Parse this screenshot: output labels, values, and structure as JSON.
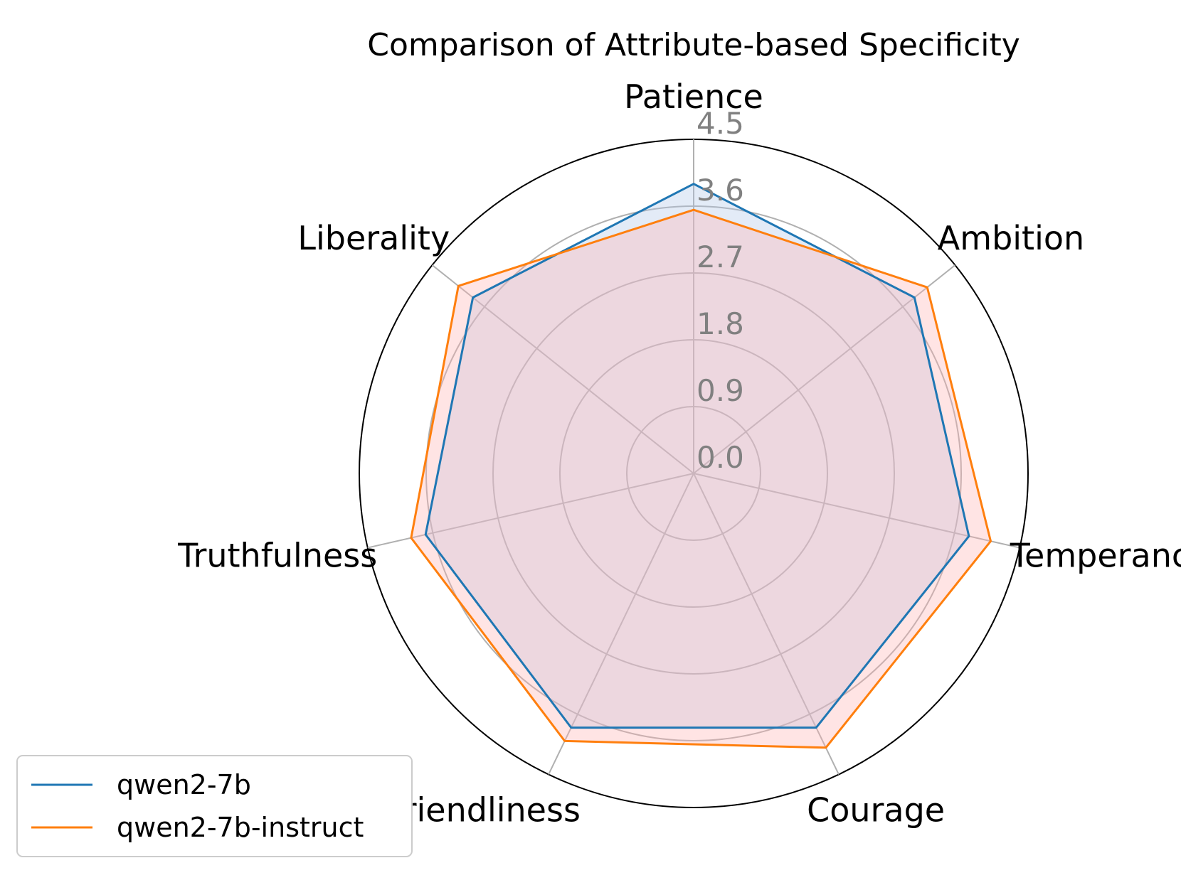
{
  "chart_data": {
    "type": "radar",
    "title": "Comparison of Attribute-based Specificity",
    "categories": [
      "Patience",
      "Ambition",
      "Temperance",
      "Courage",
      "Friendliness",
      "Truthfulness",
      "Liberality"
    ],
    "rlim": [
      0,
      4.5
    ],
    "radial_ticks": [
      "0.0",
      "0.9",
      "1.8",
      "2.7",
      "3.6",
      "4.5"
    ],
    "radial_tick_values": [
      0,
      0.9,
      1.8,
      2.7,
      3.6,
      4.5
    ],
    "grid": true,
    "legend_position": "bottom-left",
    "series": [
      {
        "name": "qwen2-7b",
        "values": [
          3.9,
          3.8,
          3.8,
          3.8,
          3.8,
          3.7,
          3.8
        ],
        "color": "#1f77b4",
        "fill": "#aec7e8"
      },
      {
        "name": "qwen2-7b-instruct",
        "values": [
          3.55,
          4.02,
          4.1,
          4.1,
          4.0,
          3.9,
          4.05
        ],
        "color": "#ff7f0e",
        "fill": "#ffb3b3"
      }
    ]
  }
}
